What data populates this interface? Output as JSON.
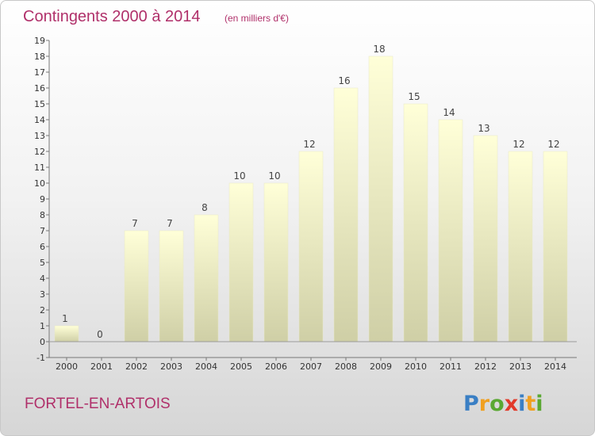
{
  "header": {
    "title": "Contingents 2000 à 2014",
    "subtitle": "(en milliers d'€)"
  },
  "footer": {
    "commune": "FORTEL-EN-ARTOIS",
    "logo": {
      "letters": [
        "P",
        "r",
        "o",
        "x",
        "i",
        "t",
        "i"
      ],
      "colors": [
        "#3a7fc4",
        "#f0a020",
        "#5aa832",
        "#e23a2a",
        "#3a7fc4",
        "#f0a020",
        "#5aa832"
      ]
    }
  },
  "colors": {
    "bar_top": "#ffffd8",
    "bar_bottom": "#cfcfa6",
    "accent": "#b0306a"
  },
  "chart_data": {
    "type": "bar",
    "categories": [
      "2000",
      "2001",
      "2002",
      "2003",
      "2004",
      "2005",
      "2006",
      "2007",
      "2008",
      "2009",
      "2010",
      "2011",
      "2012",
      "2013",
      "2014"
    ],
    "values": [
      1,
      0,
      7,
      7,
      8,
      10,
      10,
      12,
      16,
      18,
      15,
      14,
      13,
      12,
      12
    ],
    "title": "Contingents 2000 à 2014",
    "subtitle": "(en milliers d'€)",
    "ylim": [
      -1,
      19
    ],
    "yticks": [
      -1,
      0,
      1,
      2,
      3,
      4,
      5,
      6,
      7,
      8,
      9,
      10,
      11,
      12,
      13,
      14,
      15,
      16,
      17,
      18,
      19
    ],
    "grid": false,
    "data_labels": true
  }
}
